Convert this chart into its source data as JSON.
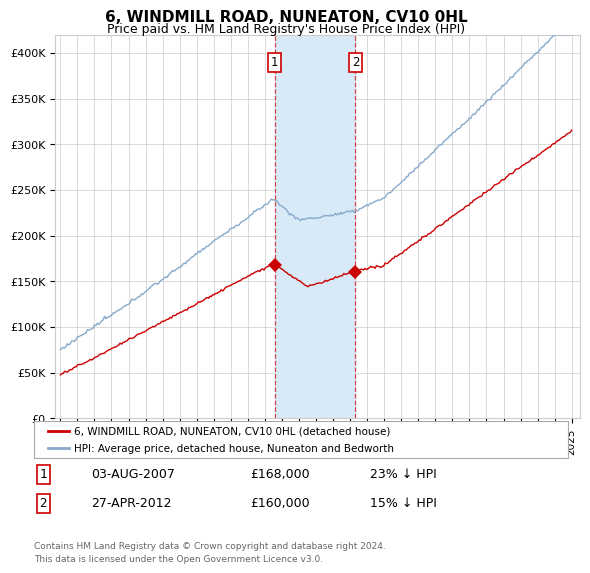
{
  "title": "6, WINDMILL ROAD, NUNEATON, CV10 0HL",
  "subtitle": "Price paid vs. HM Land Registry's House Price Index (HPI)",
  "title_fontsize": 11,
  "subtitle_fontsize": 9,
  "background_color": "#ffffff",
  "grid_color": "#cccccc",
  "plot_bg": "#ffffff",
  "red_line_color": "#cc0000",
  "blue_line_color": "#88aacc",
  "shade_color": "#d8eaf8",
  "legend_label_red": "6, WINDMILL ROAD, NUNEATON, CV10 0HL (detached house)",
  "legend_label_blue": "HPI: Average price, detached house, Nuneaton and Bedworth",
  "annotation1": [
    "1",
    "03-AUG-2007",
    "£168,000",
    "23% ↓ HPI"
  ],
  "annotation2": [
    "2",
    "27-APR-2012",
    "£160,000",
    "15% ↓ HPI"
  ],
  "footer": "Contains HM Land Registry data © Crown copyright and database right 2024.\nThis data is licensed under the Open Government Licence v3.0.",
  "ylim": [
    0,
    420000
  ],
  "yticks": [
    0,
    50000,
    100000,
    150000,
    200000,
    250000,
    300000,
    350000,
    400000
  ],
  "ytick_labels": [
    "£0",
    "£50K",
    "£100K",
    "£150K",
    "£200K",
    "£250K",
    "£300K",
    "£350K",
    "£400K"
  ],
  "year_start": 1995,
  "year_end": 2025,
  "sale1_year": 2007.58,
  "sale1_price": 168000,
  "sale2_year": 2012.31,
  "sale2_price": 160000
}
